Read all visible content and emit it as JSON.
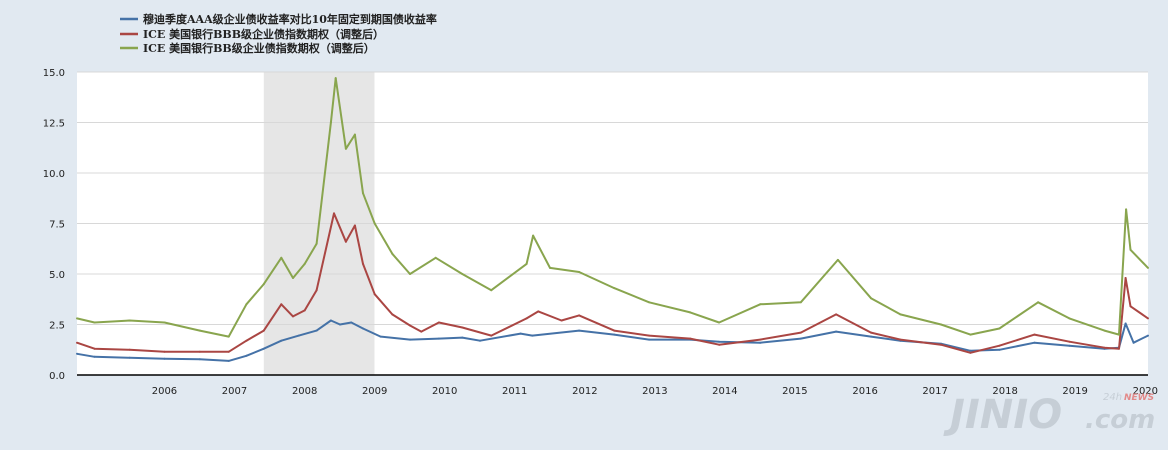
{
  "chart_data": {
    "type": "line",
    "xlabel": "",
    "ylabel": "",
    "ylim": [
      0,
      15
    ],
    "xlim": [
      "2005-04-01",
      "2020-07-15"
    ],
    "yticks": [
      "0.0",
      "2.5",
      "5.0",
      "7.5",
      "10.0",
      "12.5",
      "15.0"
    ],
    "xticks": [
      "2006",
      "2007",
      "2008",
      "2009",
      "2010",
      "2011",
      "2012",
      "2013",
      "2014",
      "2015",
      "2016",
      "2017",
      "2018",
      "2019",
      "2020"
    ],
    "grid": "horizontal",
    "legend_position": "top-left",
    "recession_shading": [
      [
        "2007-12-01",
        "2009-06-30"
      ]
    ],
    "series": [
      {
        "name": "穆迪季度AAA级企业债收益率对比10年固定到期国债收益率",
        "color": "#4572a7",
        "points": [
          [
            "2005-04-01",
            1.05
          ],
          [
            "2005-07-01",
            0.9
          ],
          [
            "2006-01-01",
            0.85
          ],
          [
            "2006-07-01",
            0.8
          ],
          [
            "2007-01-01",
            0.78
          ],
          [
            "2007-06-01",
            0.7
          ],
          [
            "2007-09-01",
            0.95
          ],
          [
            "2007-12-01",
            1.3
          ],
          [
            "2008-03-01",
            1.7
          ],
          [
            "2008-06-01",
            1.95
          ],
          [
            "2008-09-01",
            2.2
          ],
          [
            "2008-11-15",
            2.7
          ],
          [
            "2009-01-01",
            2.5
          ],
          [
            "2009-03-01",
            2.6
          ],
          [
            "2009-05-01",
            2.3
          ],
          [
            "2009-08-01",
            1.9
          ],
          [
            "2010-01-01",
            1.75
          ],
          [
            "2010-06-01",
            1.8
          ],
          [
            "2010-10-01",
            1.85
          ],
          [
            "2011-01-01",
            1.7
          ],
          [
            "2011-08-01",
            2.05
          ],
          [
            "2011-10-01",
            1.95
          ],
          [
            "2012-06-01",
            2.2
          ],
          [
            "2012-12-01",
            2.0
          ],
          [
            "2013-06-01",
            1.75
          ],
          [
            "2014-01-01",
            1.75
          ],
          [
            "2014-06-01",
            1.65
          ],
          [
            "2015-01-01",
            1.6
          ],
          [
            "2015-08-01",
            1.8
          ],
          [
            "2016-02-01",
            2.15
          ],
          [
            "2016-08-01",
            1.9
          ],
          [
            "2017-01-01",
            1.7
          ],
          [
            "2017-08-01",
            1.55
          ],
          [
            "2018-01-01",
            1.2
          ],
          [
            "2018-06-01",
            1.25
          ],
          [
            "2018-12-01",
            1.6
          ],
          [
            "2019-06-01",
            1.45
          ],
          [
            "2019-12-01",
            1.3
          ],
          [
            "2020-02-15",
            1.35
          ],
          [
            "2020-03-20",
            2.55
          ],
          [
            "2020-05-01",
            1.6
          ],
          [
            "2020-07-15",
            1.95
          ]
        ]
      },
      {
        "name": "ICE 美国银行BBB级企业债指数期权（调整后）",
        "color": "#aa4643",
        "points": [
          [
            "2005-04-01",
            1.6
          ],
          [
            "2005-07-01",
            1.3
          ],
          [
            "2006-01-01",
            1.25
          ],
          [
            "2006-07-01",
            1.15
          ],
          [
            "2007-01-01",
            1.15
          ],
          [
            "2007-06-01",
            1.15
          ],
          [
            "2007-09-01",
            1.7
          ],
          [
            "2007-12-01",
            2.2
          ],
          [
            "2008-03-01",
            3.5
          ],
          [
            "2008-05-01",
            2.9
          ],
          [
            "2008-07-01",
            3.2
          ],
          [
            "2008-09-01",
            4.2
          ],
          [
            "2008-12-01",
            8.0
          ],
          [
            "2009-02-01",
            6.6
          ],
          [
            "2009-03-20",
            7.4
          ],
          [
            "2009-05-01",
            5.5
          ],
          [
            "2009-07-01",
            4.0
          ],
          [
            "2009-10-01",
            3.0
          ],
          [
            "2010-01-01",
            2.45
          ],
          [
            "2010-03-01",
            2.15
          ],
          [
            "2010-06-01",
            2.6
          ],
          [
            "2010-10-01",
            2.35
          ],
          [
            "2011-03-01",
            1.95
          ],
          [
            "2011-09-01",
            2.8
          ],
          [
            "2011-11-01",
            3.15
          ],
          [
            "2012-03-01",
            2.7
          ],
          [
            "2012-06-01",
            2.95
          ],
          [
            "2012-12-01",
            2.2
          ],
          [
            "2013-06-01",
            1.95
          ],
          [
            "2014-01-01",
            1.8
          ],
          [
            "2014-06-01",
            1.5
          ],
          [
            "2015-01-01",
            1.75
          ],
          [
            "2015-08-01",
            2.1
          ],
          [
            "2016-02-01",
            3.0
          ],
          [
            "2016-08-01",
            2.1
          ],
          [
            "2017-01-01",
            1.75
          ],
          [
            "2017-08-01",
            1.5
          ],
          [
            "2018-01-01",
            1.1
          ],
          [
            "2018-06-01",
            1.45
          ],
          [
            "2018-12-01",
            2.0
          ],
          [
            "2019-06-01",
            1.65
          ],
          [
            "2019-12-01",
            1.35
          ],
          [
            "2020-02-15",
            1.3
          ],
          [
            "2020-03-20",
            4.8
          ],
          [
            "2020-04-15",
            3.4
          ],
          [
            "2020-07-15",
            2.8
          ]
        ]
      },
      {
        "name": "ICE 美国银行BB级企业债指数期权（调整后）",
        "color": "#89a54e",
        "points": [
          [
            "2005-04-01",
            2.8
          ],
          [
            "2005-07-01",
            2.6
          ],
          [
            "2006-01-01",
            2.7
          ],
          [
            "2006-07-01",
            2.6
          ],
          [
            "2007-01-01",
            2.2
          ],
          [
            "2007-06-01",
            1.9
          ],
          [
            "2007-09-01",
            3.5
          ],
          [
            "2007-12-01",
            4.5
          ],
          [
            "2008-03-01",
            5.8
          ],
          [
            "2008-05-01",
            4.8
          ],
          [
            "2008-07-01",
            5.5
          ],
          [
            "2008-09-01",
            6.5
          ],
          [
            "2008-11-15",
            12.5
          ],
          [
            "2008-12-10",
            14.7
          ],
          [
            "2009-02-01",
            11.2
          ],
          [
            "2009-03-20",
            11.9
          ],
          [
            "2009-05-01",
            9.0
          ],
          [
            "2009-07-01",
            7.5
          ],
          [
            "2009-10-01",
            6.0
          ],
          [
            "2010-01-01",
            5.0
          ],
          [
            "2010-05-15",
            5.8
          ],
          [
            "2010-10-01",
            5.0
          ],
          [
            "2011-03-01",
            4.2
          ],
          [
            "2011-09-01",
            5.5
          ],
          [
            "2011-10-05",
            6.9
          ],
          [
            "2012-01-01",
            5.3
          ],
          [
            "2012-06-01",
            5.1
          ],
          [
            "2012-12-01",
            4.3
          ],
          [
            "2013-06-01",
            3.6
          ],
          [
            "2014-01-01",
            3.1
          ],
          [
            "2014-06-01",
            2.6
          ],
          [
            "2015-01-01",
            3.5
          ],
          [
            "2015-08-01",
            3.6
          ],
          [
            "2016-02-10",
            5.7
          ],
          [
            "2016-08-01",
            3.8
          ],
          [
            "2017-01-01",
            3.0
          ],
          [
            "2017-08-01",
            2.5
          ],
          [
            "2018-01-01",
            2.0
          ],
          [
            "2018-06-01",
            2.3
          ],
          [
            "2018-12-20",
            3.6
          ],
          [
            "2019-06-01",
            2.8
          ],
          [
            "2019-12-01",
            2.2
          ],
          [
            "2020-02-15",
            2.0
          ],
          [
            "2020-03-23",
            8.2
          ],
          [
            "2020-04-15",
            6.2
          ],
          [
            "2020-07-15",
            5.3
          ]
        ]
      }
    ]
  },
  "watermark": {
    "main": "JINIO",
    "suffix": ".com",
    "sub": "24h",
    "news": "NEWS"
  }
}
